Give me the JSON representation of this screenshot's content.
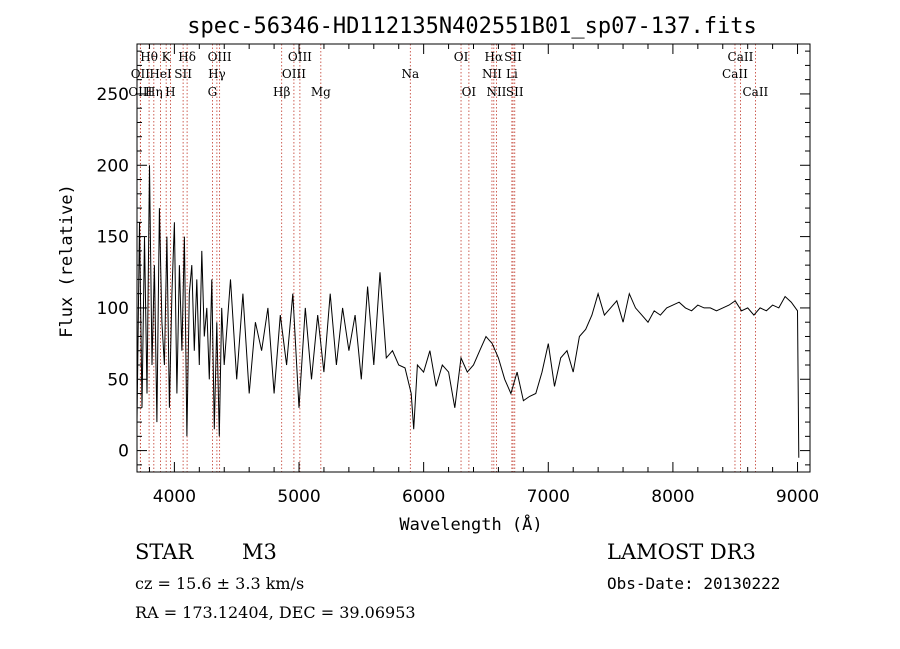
{
  "chart_data": {
    "type": "line",
    "title": "spec-56346-HD112135N402551B01_sp07-137.fits",
    "xlabel": "Wavelength (Å)",
    "ylabel": "Flux (relative)",
    "xlim": [
      3700,
      9100
    ],
    "ylim": [
      -15,
      285
    ],
    "xticks": [
      4000,
      5000,
      6000,
      7000,
      8000,
      9000
    ],
    "yticks": [
      0,
      50,
      100,
      150,
      200,
      250
    ],
    "grid": false,
    "series": [
      {
        "x": [
          3700,
          3720,
          3740,
          3760,
          3780,
          3800,
          3820,
          3840,
          3860,
          3880,
          3900,
          3920,
          3940,
          3960,
          3980,
          4000,
          4020,
          4040,
          4060,
          4080,
          4100,
          4120,
          4140,
          4160,
          4180,
          4200,
          4220,
          4240,
          4260,
          4280,
          4300,
          4320,
          4340,
          4360,
          4380,
          4400,
          4450,
          4500,
          4550,
          4600,
          4650,
          4700,
          4750,
          4800,
          4850,
          4900,
          4950,
          5000,
          5050,
          5100,
          5150,
          5200,
          5250,
          5300,
          5350,
          5400,
          5450,
          5500,
          5550,
          5600,
          5650,
          5700,
          5750,
          5800,
          5850,
          5900,
          5920,
          5950,
          6000,
          6050,
          6100,
          6150,
          6200,
          6250,
          6300,
          6350,
          6400,
          6450,
          6500,
          6550,
          6600,
          6650,
          6700,
          6750,
          6800,
          6850,
          6900,
          6950,
          7000,
          7050,
          7100,
          7150,
          7200,
          7250,
          7300,
          7350,
          7400,
          7450,
          7500,
          7550,
          7600,
          7650,
          7700,
          7750,
          7800,
          7850,
          7900,
          7950,
          8000,
          8050,
          8100,
          8150,
          8200,
          8250,
          8300,
          8350,
          8400,
          8450,
          8500,
          8550,
          8600,
          8650,
          8700,
          8750,
          8800,
          8850,
          8900,
          8950,
          9000,
          9010
        ],
        "y": [
          20,
          160,
          30,
          150,
          40,
          200,
          60,
          130,
          20,
          170,
          90,
          60,
          150,
          30,
          110,
          160,
          40,
          130,
          70,
          150,
          10,
          110,
          130,
          70,
          120,
          60,
          140,
          80,
          100,
          50,
          120,
          15,
          90,
          10,
          100,
          60,
          120,
          50,
          110,
          40,
          90,
          70,
          100,
          40,
          95,
          60,
          110,
          30,
          100,
          50,
          95,
          55,
          110,
          60,
          100,
          70,
          95,
          50,
          115,
          60,
          125,
          65,
          70,
          60,
          58,
          40,
          15,
          60,
          55,
          70,
          45,
          60,
          55,
          30,
          65,
          55,
          60,
          70,
          80,
          75,
          65,
          50,
          40,
          55,
          35,
          38,
          40,
          55,
          75,
          45,
          65,
          70,
          55,
          80,
          85,
          95,
          110,
          95,
          100,
          105,
          90,
          110,
          100,
          95,
          90,
          98,
          95,
          100,
          102,
          104,
          100,
          98,
          102,
          100,
          100,
          98,
          100,
          102,
          105,
          98,
          100,
          95,
          100,
          98,
          102,
          100,
          108,
          104,
          98,
          -5
        ]
      }
    ],
    "lines": [
      {
        "name": "Hθ",
        "x": 3797,
        "row": 1
      },
      {
        "name": "OII",
        "x": 3727,
        "row": 2
      },
      {
        "name": "OIII",
        "x": 3727,
        "row": 3
      },
      {
        "name": "Hη",
        "x": 3835,
        "row": 3
      },
      {
        "name": "K",
        "x": 3934,
        "row": 1
      },
      {
        "name": "HeI",
        "x": 3889,
        "row": 2
      },
      {
        "name": "H",
        "x": 3968,
        "row": 3
      },
      {
        "name": "Hδ",
        "x": 4102,
        "row": 1
      },
      {
        "name": "SII",
        "x": 4070,
        "row": 2
      },
      {
        "name": "OIII",
        "x": 4363,
        "row": 1
      },
      {
        "name": "Hγ",
        "x": 4341,
        "row": 2
      },
      {
        "name": "G",
        "x": 4305,
        "row": 3
      },
      {
        "name": "Hβ",
        "x": 4861,
        "row": 3
      },
      {
        "name": "OIII",
        "x": 5007,
        "row": 1
      },
      {
        "name": "OIII",
        "x": 4959,
        "row": 2
      },
      {
        "name": "Mg",
        "x": 5175,
        "row": 3
      },
      {
        "name": "Na",
        "x": 5893,
        "row": 2
      },
      {
        "name": "OI",
        "x": 6300,
        "row": 1
      },
      {
        "name": "OI",
        "x": 6363,
        "row": 3
      },
      {
        "name": "Hα",
        "x": 6563,
        "row": 1
      },
      {
        "name": "NII",
        "x": 6548,
        "row": 2
      },
      {
        "name": "NII",
        "x": 6584,
        "row": 3
      },
      {
        "name": "SII",
        "x": 6717,
        "row": 1
      },
      {
        "name": "Li",
        "x": 6708,
        "row": 2
      },
      {
        "name": "SII",
        "x": 6731,
        "row": 3
      },
      {
        "name": "CaII",
        "x": 8542,
        "row": 1
      },
      {
        "name": "CaII",
        "x": 8498,
        "row": 2
      },
      {
        "name": "CaII",
        "x": 8662,
        "row": 3
      }
    ]
  },
  "info": {
    "object_class": "STAR",
    "subclass": "M3",
    "survey": "LAMOST DR3",
    "redshift": "cz = 15.6 ± 3.3 km/s",
    "obs_date": "Obs-Date: 20130222",
    "coords": "RA = 173.12404, DEC =  39.06953"
  }
}
